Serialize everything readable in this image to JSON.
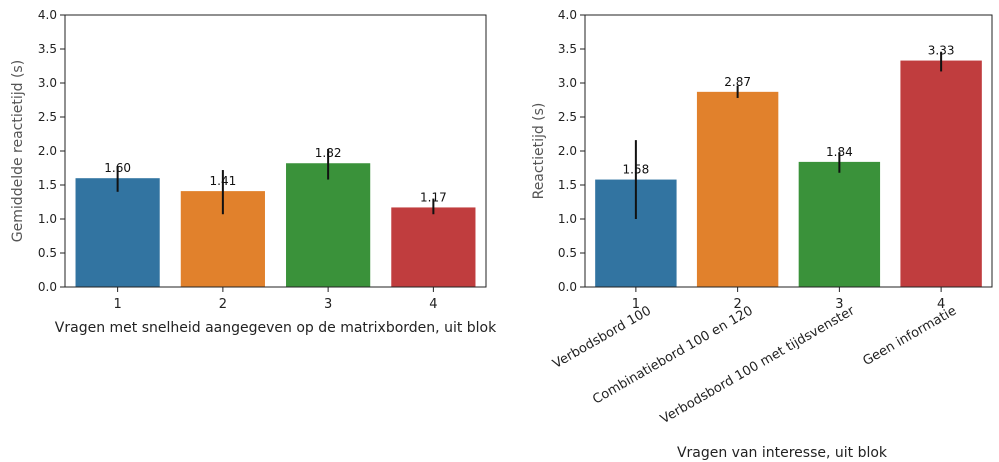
{
  "chart_data": [
    {
      "type": "bar",
      "categories": [
        "1",
        "2",
        "3",
        "4"
      ],
      "values": [
        1.6,
        1.41,
        1.82,
        1.17
      ],
      "error_low": [
        1.4,
        1.07,
        1.58,
        1.07
      ],
      "error_high": [
        1.78,
        1.72,
        2.03,
        1.3
      ],
      "data_labels": [
        "1.60",
        "1.41",
        "1.82",
        "1.17"
      ],
      "colors": [
        "#3274a1",
        "#e1812c",
        "#3a923a",
        "#c03d3e"
      ],
      "xlabel": "Vragen met snelheid aangegeven op de matrixborden, uit blok",
      "ylabel": "Gemiddelde reactietijd (s)",
      "ylim": [
        0,
        4.0
      ],
      "yticks": [
        "0.0",
        "0.5",
        "1.0",
        "1.5",
        "2.0",
        "2.5",
        "3.0",
        "3.5",
        "4.0"
      ],
      "category_labels": [],
      "grid": false
    },
    {
      "type": "bar",
      "categories": [
        "1",
        "2",
        "3",
        "4"
      ],
      "values": [
        1.58,
        2.87,
        1.84,
        3.33
      ],
      "error_low": [
        1.0,
        2.78,
        1.68,
        3.17
      ],
      "error_high": [
        2.16,
        2.96,
        1.98,
        3.46
      ],
      "data_labels": [
        "1.58",
        "2.87",
        "1.84",
        "3.33"
      ],
      "colors": [
        "#3274a1",
        "#e1812c",
        "#3a923a",
        "#c03d3e"
      ],
      "xlabel": "Vragen van interesse, uit blok",
      "ylabel": "Reactietijd (s)",
      "ylim": [
        0,
        4.0
      ],
      "yticks": [
        "0.0",
        "0.5",
        "1.0",
        "1.5",
        "2.0",
        "2.5",
        "3.0",
        "3.5",
        "4.0"
      ],
      "category_labels": [
        "Verbodsbord 100",
        "Combinatiebord 100 en 120",
        "Verbodsbord 100 met tijdsvenster",
        "Geen informatie"
      ],
      "grid": false
    }
  ]
}
